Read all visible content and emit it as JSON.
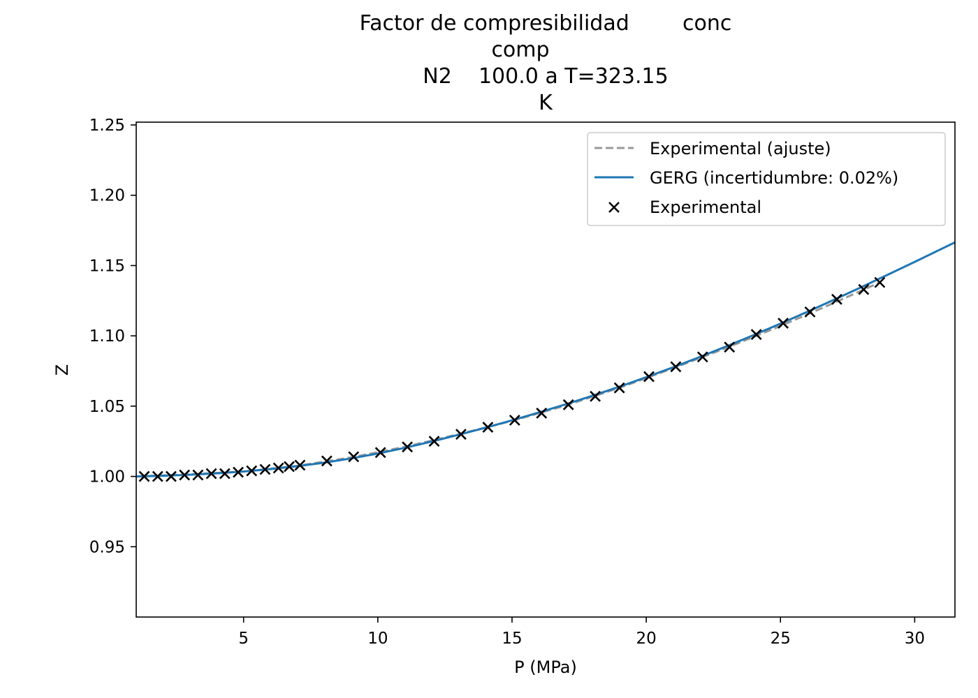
{
  "chart_data": {
    "type": "line",
    "title_lines": [
      "Factor de compresibilidad        conc",
      "comp",
      "N2    100.0 a T=323.15",
      "K"
    ],
    "xlabel": "P (MPa)",
    "ylabel": "Z",
    "xlim": [
      1.0,
      31.5
    ],
    "ylim": [
      0.9,
      1.252
    ],
    "xticks": [
      5,
      10,
      15,
      20,
      25,
      30
    ],
    "xtick_labels": [
      "5",
      "10",
      "15",
      "20",
      "25",
      "30"
    ],
    "yticks": [
      0.95,
      1.0,
      1.05,
      1.1,
      1.15,
      1.2,
      1.25
    ],
    "ytick_labels": [
      "0.95",
      "1.00",
      "1.05",
      "1.10",
      "1.15",
      "1.20",
      "1.25"
    ],
    "legend_position": "upper right",
    "series": [
      {
        "name": "Experimental (ajuste)",
        "kind": "line",
        "style": "dashed",
        "color": "#999999",
        "x": [
          1.0,
          3.0,
          5.0,
          7.0,
          9.0,
          11.0,
          13.0,
          15.0,
          17.0,
          19.0,
          21.0,
          23.0,
          25.0,
          27.0,
          28.7
        ],
        "y": [
          1.0,
          1.0015,
          1.0035,
          1.0075,
          1.0135,
          1.021,
          1.03,
          1.0395,
          1.0505,
          1.063,
          1.077,
          1.0915,
          1.107,
          1.1235,
          1.138
        ]
      },
      {
        "name": "GERG (incertidumbre: 0.02%)",
        "kind": "line",
        "style": "solid",
        "color": "#1f77b4",
        "x": [
          1.0,
          2.0,
          3.0,
          4.0,
          5.0,
          6.0,
          7.0,
          8.0,
          9.0,
          10.0,
          11.0,
          12.0,
          13.0,
          14.0,
          15.0,
          16.0,
          17.0,
          18.0,
          19.0,
          20.0,
          21.0,
          22.0,
          23.0,
          24.0,
          25.0,
          26.0,
          27.0,
          28.0,
          29.0,
          30.0,
          31.5
        ],
        "y": [
          1.0,
          1.0005,
          1.0012,
          1.0022,
          1.0035,
          1.0052,
          1.0073,
          1.0098,
          1.0128,
          1.0163,
          1.0203,
          1.0248,
          1.0296,
          1.0346,
          1.0399,
          1.0455,
          1.0513,
          1.0574,
          1.0638,
          1.0706,
          1.0776,
          1.085,
          1.0926,
          1.1005,
          1.1087,
          1.1171,
          1.1257,
          1.1345,
          1.1435,
          1.1526,
          1.1665
        ]
      },
      {
        "name": "Experimental",
        "kind": "scatter",
        "marker": "x",
        "color": "#000000",
        "x": [
          1.3,
          1.8,
          2.3,
          2.8,
          3.3,
          3.8,
          4.3,
          4.8,
          5.3,
          5.8,
          6.3,
          6.7,
          7.1,
          8.1,
          9.1,
          10.1,
          11.1,
          12.1,
          13.1,
          14.1,
          15.1,
          16.1,
          17.1,
          18.1,
          19.0,
          20.1,
          21.1,
          22.1,
          23.1,
          24.1,
          25.1,
          26.1,
          27.1,
          28.1,
          28.7
        ],
        "y": [
          1.0,
          1.0,
          1.0,
          1.001,
          1.001,
          1.002,
          1.002,
          1.003,
          1.004,
          1.005,
          1.006,
          1.007,
          1.008,
          1.011,
          1.014,
          1.017,
          1.021,
          1.025,
          1.03,
          1.035,
          1.04,
          1.045,
          1.051,
          1.057,
          1.063,
          1.071,
          1.078,
          1.085,
          1.092,
          1.101,
          1.109,
          1.117,
          1.126,
          1.133,
          1.138
        ]
      }
    ]
  }
}
